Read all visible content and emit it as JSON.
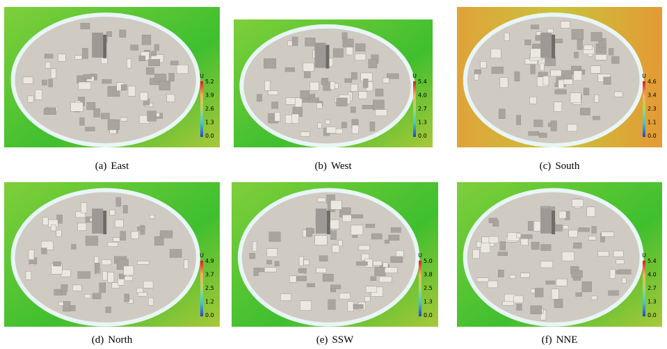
{
  "panels": [
    {
      "label": "(a)",
      "name": "East",
      "colorbar": {
        "title": "U",
        "ticks": [
          "5.2",
          "3.9",
          "2.6",
          "1.3",
          "0.0"
        ]
      }
    },
    {
      "label": "(b)",
      "name": "West",
      "colorbar": {
        "title": "U",
        "ticks": [
          "5.4",
          "4.0",
          "2.7",
          "1.3",
          "0.0"
        ]
      }
    },
    {
      "label": "(c)",
      "name": "South",
      "colorbar": {
        "title": "U",
        "ticks": [
          "4.6",
          "3.4",
          "2.3",
          "1.1",
          "0.0"
        ]
      }
    },
    {
      "label": "(d)",
      "name": "North",
      "colorbar": {
        "title": "U",
        "ticks": [
          "4.9",
          "3.7",
          "2.5",
          "1.2",
          "0.0"
        ]
      }
    },
    {
      "label": "(e)",
      "name": "SSW",
      "colorbar": {
        "title": "U",
        "ticks": [
          "5.0",
          "3.8",
          "2.5",
          "1.3",
          "0.0"
        ]
      }
    },
    {
      "label": "(f)",
      "name": "NNE",
      "colorbar": {
        "title": "U",
        "ticks": [
          "5.4",
          "4.0",
          "2.7",
          "1.3",
          "0.0"
        ]
      }
    }
  ]
}
